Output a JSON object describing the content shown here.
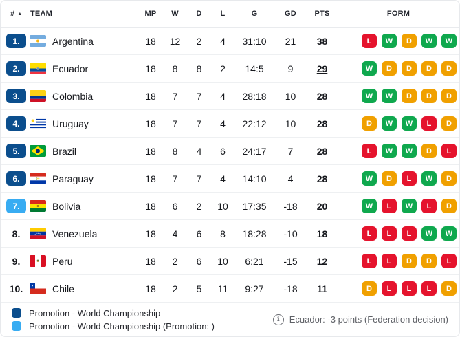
{
  "table": {
    "headers": {
      "pos": "#",
      "team": "TEAM",
      "mp": "MP",
      "w": "W",
      "d": "D",
      "l": "L",
      "g": "G",
      "gd": "GD",
      "pts": "PTS",
      "form": "FORM",
      "sort_indicator": "▲"
    },
    "rows": [
      {
        "pos": "1.",
        "badge": "navy",
        "flag": "argentina",
        "team": "Argentina",
        "mp": "18",
        "w": "12",
        "d": "2",
        "l": "4",
        "g": "31:10",
        "gd": "21",
        "pts": "38",
        "pts_underline": false,
        "form": [
          "L",
          "W",
          "D",
          "W",
          "W"
        ]
      },
      {
        "pos": "2.",
        "badge": "navy",
        "flag": "ecuador",
        "team": "Ecuador",
        "mp": "18",
        "w": "8",
        "d": "8",
        "l": "2",
        "g": "14:5",
        "gd": "9",
        "pts": "29",
        "pts_underline": true,
        "form": [
          "W",
          "D",
          "D",
          "D",
          "D"
        ]
      },
      {
        "pos": "3.",
        "badge": "navy",
        "flag": "colombia",
        "team": "Colombia",
        "mp": "18",
        "w": "7",
        "d": "7",
        "l": "4",
        "g": "28:18",
        "gd": "10",
        "pts": "28",
        "pts_underline": false,
        "form": [
          "W",
          "W",
          "D",
          "D",
          "D"
        ]
      },
      {
        "pos": "4.",
        "badge": "navy",
        "flag": "uruguay",
        "team": "Uruguay",
        "mp": "18",
        "w": "7",
        "d": "7",
        "l": "4",
        "g": "22:12",
        "gd": "10",
        "pts": "28",
        "pts_underline": false,
        "form": [
          "D",
          "W",
          "W",
          "L",
          "D"
        ]
      },
      {
        "pos": "5.",
        "badge": "navy",
        "flag": "brazil",
        "team": "Brazil",
        "mp": "18",
        "w": "8",
        "d": "4",
        "l": "6",
        "g": "24:17",
        "gd": "7",
        "pts": "28",
        "pts_underline": false,
        "form": [
          "L",
          "W",
          "W",
          "D",
          "L"
        ]
      },
      {
        "pos": "6.",
        "badge": "navy",
        "flag": "paraguay",
        "team": "Paraguay",
        "mp": "18",
        "w": "7",
        "d": "7",
        "l": "4",
        "g": "14:10",
        "gd": "4",
        "pts": "28",
        "pts_underline": false,
        "form": [
          "W",
          "D",
          "L",
          "W",
          "D"
        ]
      },
      {
        "pos": "7.",
        "badge": "sky",
        "flag": "bolivia",
        "team": "Bolivia",
        "mp": "18",
        "w": "6",
        "d": "2",
        "l": "10",
        "g": "17:35",
        "gd": "-18",
        "pts": "20",
        "pts_underline": false,
        "form": [
          "W",
          "L",
          "W",
          "L",
          "D"
        ]
      },
      {
        "pos": "8.",
        "badge": null,
        "flag": "venezuela",
        "team": "Venezuela",
        "mp": "18",
        "w": "4",
        "d": "6",
        "l": "8",
        "g": "18:28",
        "gd": "-10",
        "pts": "18",
        "pts_underline": false,
        "form": [
          "L",
          "L",
          "L",
          "W",
          "W"
        ]
      },
      {
        "pos": "9.",
        "badge": null,
        "flag": "peru",
        "team": "Peru",
        "mp": "18",
        "w": "2",
        "d": "6",
        "l": "10",
        "g": "6:21",
        "gd": "-15",
        "pts": "12",
        "pts_underline": false,
        "form": [
          "L",
          "L",
          "D",
          "D",
          "L"
        ]
      },
      {
        "pos": "10.",
        "badge": null,
        "flag": "chile",
        "team": "Chile",
        "mp": "18",
        "w": "2",
        "d": "5",
        "l": "11",
        "g": "9:27",
        "gd": "-18",
        "pts": "11",
        "pts_underline": false,
        "form": [
          "D",
          "L",
          "L",
          "L",
          "D"
        ]
      }
    ]
  },
  "legend": {
    "items": [
      {
        "label": "Promotion - World Championship",
        "color_key": "promotion_primary"
      },
      {
        "label": "Promotion - World Championship (Promotion: )",
        "color_key": "promotion_secondary"
      }
    ]
  },
  "note": {
    "icon": "i",
    "text": "Ecuador: -3 points (Federation decision)"
  },
  "colors": {
    "promotion_primary": "#0b4e8d",
    "promotion_secondary": "#38acf2",
    "form_win": "#0fa84e",
    "form_draw": "#f0a000",
    "form_loss": "#e5132d"
  }
}
